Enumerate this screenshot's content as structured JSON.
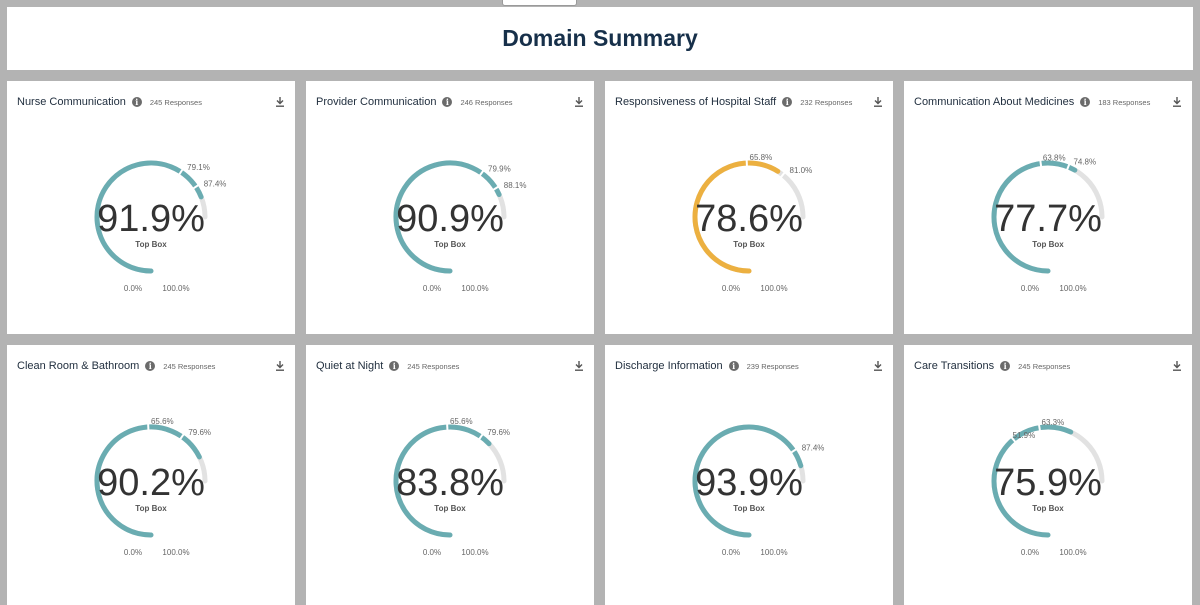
{
  "page": {
    "title": "Domain Summary"
  },
  "colors": {
    "teal": "#6aacb1",
    "orange": "#ecb040",
    "track": "#e2e2e2"
  },
  "center_label": "Top Box",
  "scale_start_label": "0.0%",
  "scale_end_label": "100.0%",
  "cards": [
    {
      "title": "Nurse Communication",
      "responses": "245 Responses",
      "value": 91.9,
      "value_label": "91.9%",
      "color": "teal",
      "markers": [
        {
          "value": 79.1,
          "label": "79.1%"
        },
        {
          "value": 87.4,
          "label": "87.4%"
        }
      ]
    },
    {
      "title": "Provider Communication",
      "responses": "246 Responses",
      "value": 90.9,
      "value_label": "90.9%",
      "color": "teal",
      "markers": [
        {
          "value": 79.9,
          "label": "79.9%"
        },
        {
          "value": 88.1,
          "label": "88.1%"
        }
      ]
    },
    {
      "title": "Responsiveness of Hospital Staff",
      "responses": "232 Responses",
      "value": 78.6,
      "value_label": "78.6%",
      "color": "orange",
      "markers": [
        {
          "value": 65.8,
          "label": "65.8%"
        },
        {
          "value": 81.0,
          "label": "81.0%"
        }
      ]
    },
    {
      "title": "Communication About Medicines",
      "responses": "183 Responses",
      "value": 77.7,
      "value_label": "77.7%",
      "color": "teal",
      "markers": [
        {
          "value": 63.8,
          "label": "63.8%"
        },
        {
          "value": 74.8,
          "label": "74.8%"
        }
      ]
    },
    {
      "title": "Clean Room & Bathroom",
      "responses": "245 Responses",
      "value": 90.2,
      "value_label": "90.2%",
      "color": "teal",
      "markers": [
        {
          "value": 65.6,
          "label": "65.6%"
        },
        {
          "value": 79.6,
          "label": "79.6%"
        }
      ]
    },
    {
      "title": "Quiet at Night",
      "responses": "245 Responses",
      "value": 83.8,
      "value_label": "83.8%",
      "color": "teal",
      "markers": [
        {
          "value": 65.6,
          "label": "65.6%"
        },
        {
          "value": 79.6,
          "label": "79.6%"
        }
      ]
    },
    {
      "title": "Discharge Information",
      "responses": "239 Responses",
      "value": 93.9,
      "value_label": "93.9%",
      "color": "teal",
      "markers": [
        {
          "value": 87.4,
          "label": "87.4%"
        }
      ]
    },
    {
      "title": "Care Transitions",
      "responses": "245 Responses",
      "value": 75.9,
      "value_label": "75.9%",
      "color": "teal",
      "markers": [
        {
          "value": 51.9,
          "label": "51.9%"
        },
        {
          "value": 63.3,
          "label": "63.3%"
        }
      ]
    }
  ]
}
